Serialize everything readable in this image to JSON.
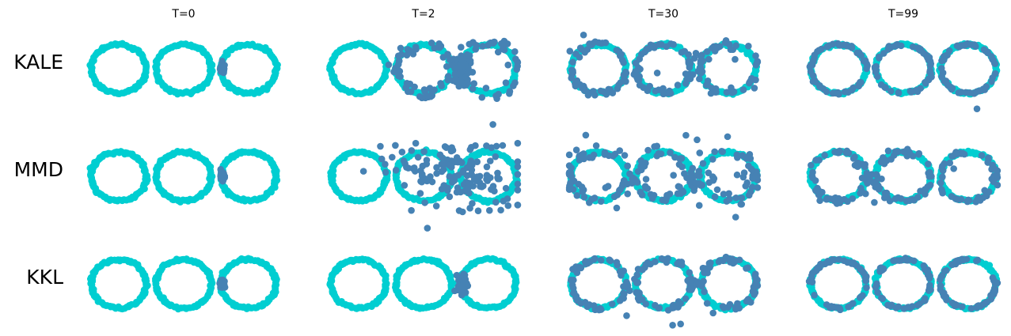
{
  "chart_data": {
    "type": "scatter",
    "description_kind": "grid of scatter panels",
    "columns": [
      "T=0",
      "T=2",
      "T=30",
      "T=99"
    ],
    "rows": [
      "KALE",
      "MMD",
      "KKL"
    ],
    "target": {
      "name": "target",
      "color": "#00CED1",
      "shape": "three rings",
      "ring_centers_x": [
        -2,
        0,
        2
      ],
      "ring_center_y": 0,
      "radius_x": 0.85,
      "radius_y": 0.75
    },
    "particles": {
      "name": "particles",
      "color": "#4682B4",
      "initial_cluster_center": [
        1.2,
        0.0
      ]
    },
    "panel_data_range": {
      "xlim": [
        -2.9,
        2.9
      ],
      "ylim": [
        -1.6,
        1.6
      ]
    },
    "panels": [
      {
        "row": "KALE",
        "column": "T=0",
        "state": "cluster",
        "spread": 0.06
      },
      {
        "row": "KALE",
        "column": "T=2",
        "state": "partial",
        "rings": [
          1,
          2
        ],
        "noise": 0.15,
        "cluster_spread": 0.35
      },
      {
        "row": "KALE",
        "column": "T=30",
        "state": "rings",
        "rings": [
          0,
          1,
          2
        ],
        "noise": 0.08,
        "outliers": 6
      },
      {
        "row": "KALE",
        "column": "T=99",
        "state": "rings",
        "rings": [
          0,
          1,
          2
        ],
        "noise": 0.03,
        "outliers": 2
      },
      {
        "row": "MMD",
        "column": "T=0",
        "state": "cluster",
        "spread": 0.05
      },
      {
        "row": "MMD",
        "column": "T=2",
        "state": "scattered",
        "rings": [
          1,
          2
        ],
        "noise": 0.55,
        "cluster_spread": 0.6
      },
      {
        "row": "MMD",
        "column": "T=30",
        "state": "rings",
        "rings": [
          0,
          1,
          2
        ],
        "noise": 0.2,
        "outliers": 18
      },
      {
        "row": "MMD",
        "column": "T=99",
        "state": "rings",
        "rings": [
          0,
          1,
          2
        ],
        "noise": 0.08,
        "outliers": 3
      },
      {
        "row": "KKL",
        "column": "T=0",
        "state": "cluster",
        "spread": 0.05
      },
      {
        "row": "KKL",
        "column": "T=2",
        "state": "cluster",
        "spread": 0.12
      },
      {
        "row": "KKL",
        "column": "T=30",
        "state": "rings",
        "rings": [
          0,
          1,
          2
        ],
        "noise": 0.06,
        "outliers": 5
      },
      {
        "row": "KKL",
        "column": "T=99",
        "state": "rings",
        "rings": [
          0,
          1,
          2
        ],
        "noise": 0.03,
        "outliers": 0
      }
    ]
  }
}
